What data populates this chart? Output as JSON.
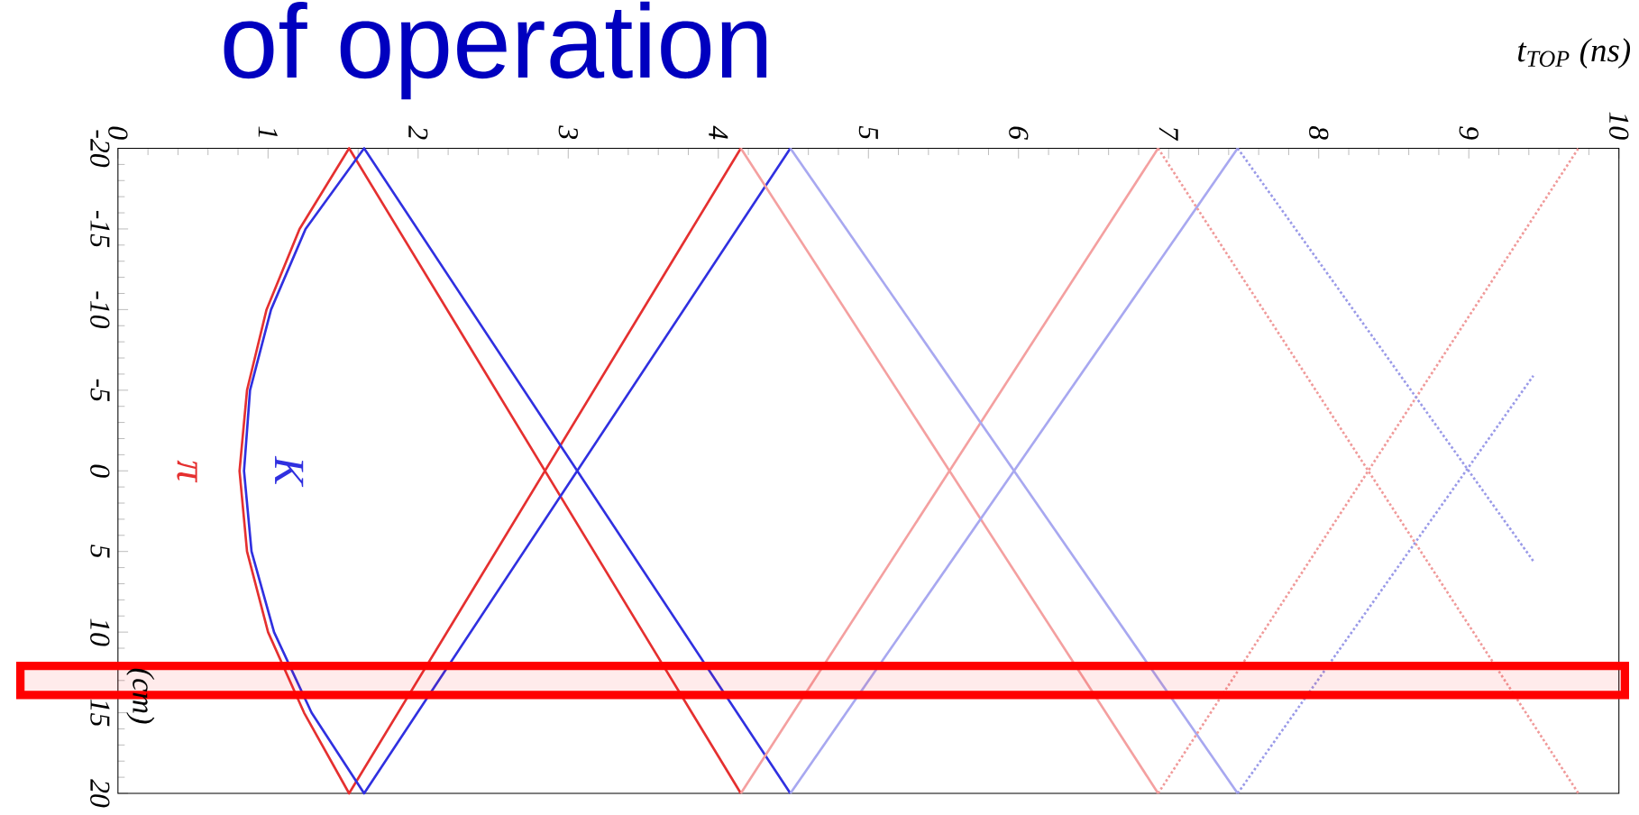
{
  "chart_data": {
    "type": "line",
    "title": "of operation",
    "xlabel": "t$_{TOP}$ (ns)",
    "ylabel": "(cm)",
    "xlim": [
      0,
      10
    ],
    "xticks": [
      0,
      1,
      2,
      3,
      4,
      5,
      6,
      7,
      8,
      9,
      10
    ],
    "ylim": [
      20,
      -20
    ],
    "yticks": [
      -20,
      -15,
      -10,
      -5,
      0,
      5,
      10,
      15,
      20
    ],
    "marker": "none",
    "grid": false,
    "series": [
      {
        "name": "π",
        "color": "#e53030",
        "line_style": "solid",
        "x": [
          4.15,
          1.54,
          1.21,
          0.99,
          0.86,
          0.81,
          0.86,
          1.0,
          1.24,
          1.54,
          4.15
        ],
        "values": [
          20,
          -20,
          -15,
          -10,
          -5,
          0,
          5,
          10,
          15,
          20,
          -20
        ]
      },
      {
        "name": "K",
        "color": "#3030e0",
        "line_style": "solid",
        "x": [
          4.48,
          1.64,
          1.25,
          1.02,
          0.88,
          0.84,
          0.89,
          1.04,
          1.29,
          1.64,
          4.48
        ],
        "values": [
          20,
          -20,
          -15,
          -10,
          -5,
          0,
          5,
          10,
          15,
          20,
          -20
        ]
      },
      {
        "color": "#f4a0a0",
        "line_style": "solid",
        "x": [
          4.15,
          6.93
        ],
        "values": [
          -20,
          20
        ]
      },
      {
        "color": "#f4a0a0",
        "line_style": "solid",
        "x": [
          4.15,
          6.93
        ],
        "values": [
          20,
          -20
        ]
      },
      {
        "color": "#a8a8f0",
        "line_style": "solid",
        "x": [
          4.48,
          7.46
        ],
        "values": [
          -20,
          20
        ]
      },
      {
        "color": "#a8a8f0",
        "line_style": "solid",
        "x": [
          4.48,
          7.46
        ],
        "values": [
          20,
          -20
        ]
      },
      {
        "color": "#f09a9a",
        "line_style": "dotted",
        "x": [
          6.93,
          9.73
        ],
        "values": [
          20,
          -20
        ]
      },
      {
        "color": "#f09a9a",
        "line_style": "dotted",
        "x": [
          6.93,
          9.73
        ],
        "values": [
          -20,
          20
        ]
      },
      {
        "color": "#9a9ae8",
        "line_style": "dotted",
        "x": [
          7.46,
          9.43
        ],
        "values": [
          -20,
          5.6
        ]
      },
      {
        "color": "#9a9ae8",
        "line_style": "dotted",
        "x": [
          7.46,
          9.43
        ],
        "values": [
          20,
          -5.9
        ]
      }
    ],
    "bands": [
      {
        "axis": "y",
        "from": 12.1,
        "to": 13.9,
        "color": "#ff0000"
      }
    ]
  }
}
